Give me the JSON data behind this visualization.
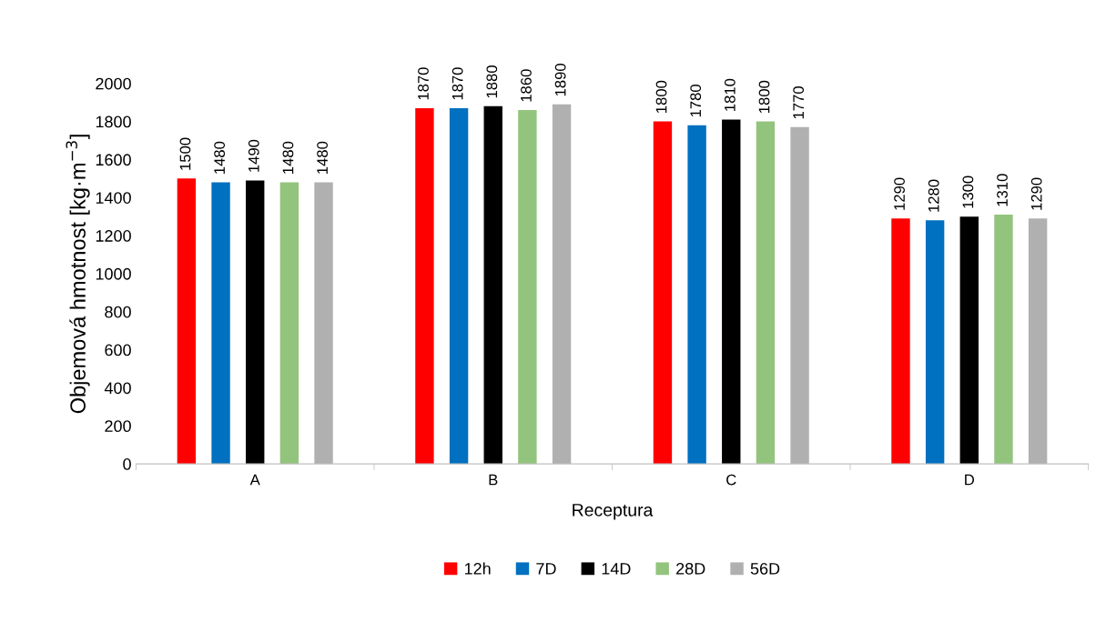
{
  "chart_data": {
    "type": "bar",
    "xlabel": "Receptura",
    "ylabel": "Objemová hmotnost [kg·m$^{−3}$]",
    "categories": [
      "A",
      "B",
      "C",
      "D"
    ],
    "series": [
      {
        "name": "12h",
        "color": "#ff0000",
        "values": [
          1500,
          1870,
          1800,
          1290
        ]
      },
      {
        "name": "7D",
        "color": "#0070c0",
        "values": [
          1480,
          1870,
          1780,
          1280
        ]
      },
      {
        "name": "14D",
        "color": "#000000",
        "values": [
          1490,
          1880,
          1810,
          1300
        ]
      },
      {
        "name": "28D",
        "color": "#93c47d",
        "values": [
          1480,
          1860,
          1800,
          1310
        ]
      },
      {
        "name": "56D",
        "color": "#b0b0b0",
        "values": [
          1480,
          1890,
          1770,
          1290
        ]
      }
    ],
    "ylim": [
      0,
      2000
    ],
    "yticks": [
      0,
      200,
      400,
      600,
      800,
      1000,
      1200,
      1400,
      1600,
      1800,
      2000
    ],
    "grid": false,
    "legend": "bottom",
    "data_labels": true
  }
}
